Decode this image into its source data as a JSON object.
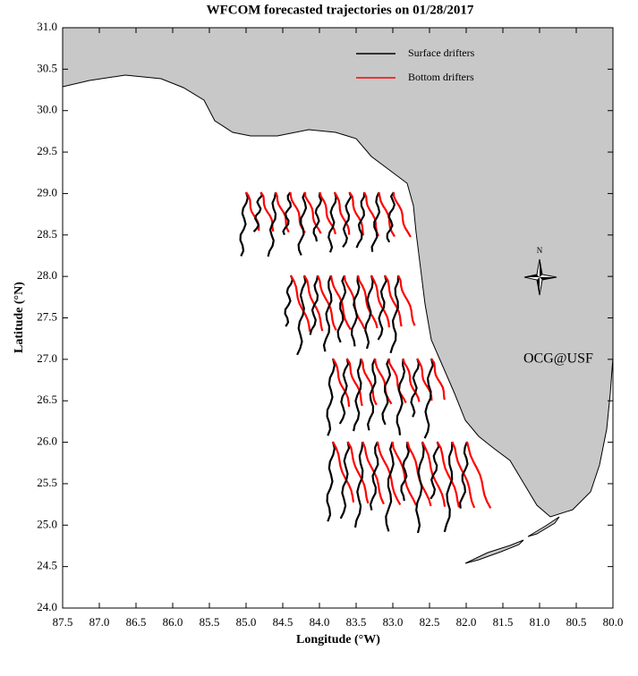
{
  "chart_data": {
    "type": "map",
    "title": "WFCOM forecasted trajectories on 01/28/2017",
    "x_label": "Longitude (°W)",
    "y_label": "Latitude (°N)",
    "xlim": [
      87.5,
      80.0
    ],
    "xticks": [
      87.5,
      {
        "value": 87,
        "label": "87.0"
      },
      86.5,
      {
        "value": 86,
        "label": "86.0"
      },
      85.5,
      {
        "value": 85,
        "label": "85.0"
      },
      84.5,
      {
        "value": 84,
        "label": "84.0"
      },
      83.5,
      {
        "value": 83,
        "label": "83.0"
      },
      82.5,
      {
        "value": 82,
        "label": "82.0"
      },
      81.5,
      {
        "value": 81,
        "label": "81.0"
      },
      80.5,
      {
        "value": 80,
        "label": "80.0"
      }
    ],
    "ylim": [
      24.0,
      31.0
    ],
    "yticks": [
      {
        "value": 24,
        "label": "24.0"
      },
      24.5,
      {
        "value": 25,
        "label": "25.0"
      },
      25.5,
      {
        "value": 26,
        "label": "26.0"
      },
      26.5,
      {
        "value": 27,
        "label": "27.0"
      },
      27.5,
      {
        "value": 28,
        "label": "28.0"
      },
      28.5,
      {
        "value": 29,
        "label": "29.0"
      },
      29.5,
      {
        "value": 30,
        "label": "30.0"
      },
      30.5,
      {
        "value": 31,
        "label": "31.0"
      }
    ],
    "legend": [
      {
        "name": "Surface drifters",
        "color": "#000000"
      },
      {
        "name": "Bottom drifters",
        "color": "#ff0000"
      }
    ],
    "annotation": {
      "text": "OCG@USF",
      "color": "#ff0000"
    },
    "compass": "N"
  }
}
